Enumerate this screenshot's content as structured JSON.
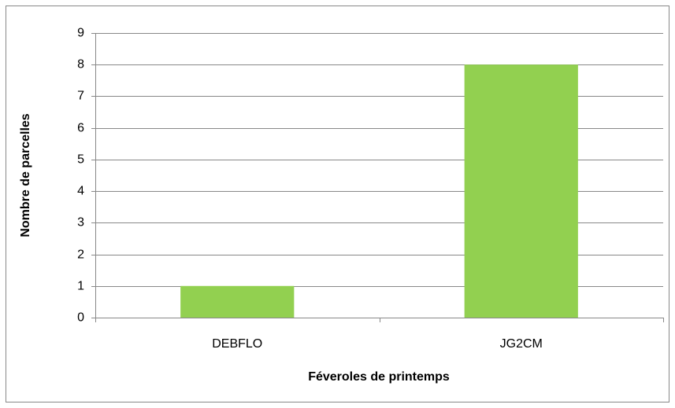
{
  "chart_data": {
    "type": "bar",
    "x_label": "Féveroles de printemps",
    "y_label": "Nombre de parcelles",
    "categories": [
      "DEBFLO",
      "JG2CM"
    ],
    "values": [
      1,
      8
    ],
    "color": "#92d050",
    "ylim": [
      0,
      9
    ],
    "yticks": [
      0,
      1,
      2,
      3,
      4,
      5,
      6,
      7,
      8,
      9
    ],
    "grid": true
  }
}
